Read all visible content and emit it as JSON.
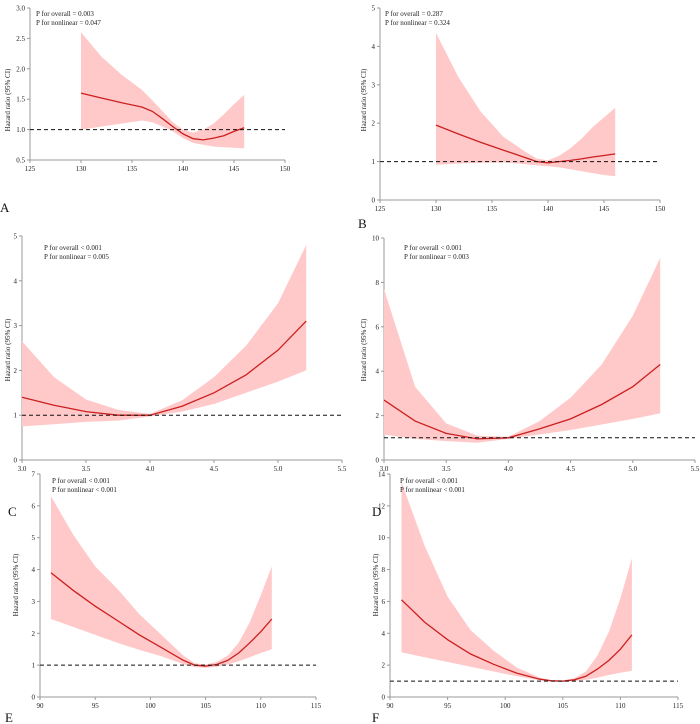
{
  "figure": {
    "description_free": true
  },
  "chart_data": [
    {
      "type": "line",
      "panel_letter": "A",
      "title": "",
      "xlabel": "",
      "ylabel": "Hazard ratio (95% CI)",
      "p_overall": "P for overall = 0.003",
      "p_nonlinear": "P for nonlinear = 0.047",
      "xlim": [
        125,
        150
      ],
      "ylim": [
        0.5,
        3.0
      ],
      "x_ticks": [
        125,
        130,
        135,
        140,
        145,
        150
      ],
      "y_ticks": [
        0.5,
        1.0,
        1.5,
        2.0,
        2.5,
        3.0
      ],
      "y_tick_labels": [
        "0.5",
        "1.0",
        "1.5",
        "2.0",
        "2.5",
        "3.0"
      ],
      "reference_line": 1,
      "series": [
        {
          "name": "Hazard ratio",
          "x": [
            130,
            132,
            134,
            136,
            137,
            138,
            139,
            140,
            141,
            142,
            143,
            144,
            145,
            146
          ],
          "values": [
            1.6,
            1.52,
            1.44,
            1.37,
            1.3,
            1.18,
            1.05,
            0.93,
            0.85,
            0.83,
            0.86,
            0.9,
            0.97,
            1.03
          ],
          "lower": [
            1.0,
            1.05,
            1.1,
            1.15,
            1.12,
            1.05,
            0.97,
            0.86,
            0.78,
            0.75,
            0.72,
            0.71,
            0.7,
            0.69
          ],
          "upper": [
            2.6,
            2.2,
            1.9,
            1.65,
            1.48,
            1.3,
            1.12,
            1.0,
            0.95,
            1.0,
            1.1,
            1.25,
            1.42,
            1.57
          ]
        }
      ]
    },
    {
      "type": "line",
      "panel_letter": "B",
      "title": "",
      "xlabel": "",
      "ylabel": "Hazard ratio (95% CI)",
      "p_overall": "P for overall = 0.287",
      "p_nonlinear": "P for nonlinear = 0.324",
      "xlim": [
        125,
        150
      ],
      "ylim": [
        0,
        5
      ],
      "x_ticks": [
        125,
        130,
        135,
        140,
        145,
        150
      ],
      "y_ticks": [
        0,
        1,
        2,
        3,
        4,
        5
      ],
      "y_tick_labels": [
        "0",
        "1",
        "2",
        "3",
        "4",
        "5"
      ],
      "reference_line": 1,
      "series": [
        {
          "name": "Hazard ratio",
          "x": [
            130,
            132,
            134,
            136,
            137,
            138,
            139,
            140,
            141,
            142,
            143,
            144,
            145,
            146
          ],
          "values": [
            1.95,
            1.72,
            1.5,
            1.3,
            1.2,
            1.1,
            1.0,
            0.97,
            1.0,
            1.03,
            1.07,
            1.12,
            1.16,
            1.2
          ],
          "lower": [
            0.92,
            0.95,
            0.97,
            0.98,
            0.96,
            0.93,
            0.9,
            0.88,
            0.85,
            0.8,
            0.75,
            0.7,
            0.65,
            0.62
          ],
          "upper": [
            4.35,
            3.2,
            2.3,
            1.65,
            1.45,
            1.25,
            1.08,
            1.03,
            1.15,
            1.35,
            1.6,
            1.9,
            2.15,
            2.4
          ]
        }
      ]
    },
    {
      "type": "line",
      "panel_letter": "C",
      "title": "",
      "xlabel": "",
      "ylabel": "Hazard ratio (95% CI)",
      "p_overall": "P for overall < 0.001",
      "p_nonlinear": "P for nonlinear = 0.005",
      "xlim": [
        3.0,
        5.5
      ],
      "ylim": [
        0,
        5
      ],
      "x_ticks": [
        3.0,
        3.5,
        4.0,
        4.5,
        5.0,
        5.5
      ],
      "y_ticks": [
        0,
        1,
        2,
        3,
        4,
        5
      ],
      "y_tick_labels": [
        "0",
        "1",
        "2",
        "3",
        "4",
        "5"
      ],
      "reference_line": 1,
      "series": [
        {
          "name": "Hazard ratio",
          "x": [
            3.0,
            3.25,
            3.5,
            3.75,
            4.0,
            4.25,
            4.5,
            4.75,
            5.0,
            5.22
          ],
          "values": [
            1.4,
            1.22,
            1.08,
            1.0,
            1.0,
            1.2,
            1.5,
            1.9,
            2.45,
            3.1
          ],
          "lower": [
            0.75,
            0.8,
            0.85,
            0.88,
            0.97,
            1.08,
            1.25,
            1.5,
            1.75,
            2.0
          ],
          "upper": [
            2.65,
            1.85,
            1.35,
            1.12,
            1.03,
            1.33,
            1.85,
            2.55,
            3.5,
            4.8
          ]
        }
      ]
    },
    {
      "type": "line",
      "panel_letter": "D",
      "title": "",
      "xlabel": "",
      "ylabel": "Hazard ratio (95% CI)",
      "p_overall": "P for overall < 0.001",
      "p_nonlinear": "P for nonlinear = 0.003",
      "xlim": [
        3.0,
        5.5
      ],
      "ylim": [
        0,
        10
      ],
      "x_ticks": [
        3.0,
        3.5,
        4.0,
        4.5,
        5.0,
        5.5
      ],
      "y_ticks": [
        0,
        2,
        4,
        6,
        8,
        10
      ],
      "y_tick_labels": [
        "0",
        "2",
        "4",
        "6",
        "8",
        "10"
      ],
      "reference_line": 1,
      "series": [
        {
          "name": "Hazard ratio",
          "x": [
            3.0,
            3.25,
            3.5,
            3.75,
            4.0,
            4.25,
            4.5,
            4.75,
            5.0,
            5.22
          ],
          "values": [
            2.7,
            1.75,
            1.2,
            0.95,
            1.0,
            1.4,
            1.85,
            2.5,
            3.3,
            4.3
          ],
          "lower": [
            1.15,
            0.95,
            0.85,
            0.78,
            0.95,
            1.15,
            1.35,
            1.6,
            1.85,
            2.1
          ],
          "upper": [
            7.7,
            3.3,
            1.65,
            1.1,
            1.05,
            1.75,
            2.8,
            4.3,
            6.5,
            9.1
          ]
        }
      ]
    },
    {
      "type": "line",
      "panel_letter": "E",
      "title": "",
      "xlabel": "",
      "ylabel": "Hazard ratio (95% CI)",
      "p_overall": "P for overall < 0.001",
      "p_nonlinear": "P for nonlinear < 0.001",
      "xlim": [
        90,
        115
      ],
      "ylim": [
        0,
        7
      ],
      "x_ticks": [
        90,
        95,
        100,
        105,
        110,
        115
      ],
      "y_ticks": [
        0,
        1,
        2,
        3,
        4,
        5,
        6,
        7
      ],
      "y_tick_labels": [
        "0",
        "1",
        "2",
        "3",
        "4",
        "5",
        "6",
        "7"
      ],
      "reference_line": 1,
      "series": [
        {
          "name": "Hazard ratio",
          "x": [
            91,
            93,
            95,
            97,
            99,
            101,
            103,
            104,
            105,
            106,
            107,
            108,
            109,
            110,
            111
          ],
          "values": [
            3.9,
            3.35,
            2.85,
            2.4,
            1.95,
            1.55,
            1.15,
            1.0,
            0.97,
            1.02,
            1.15,
            1.38,
            1.7,
            2.05,
            2.45
          ],
          "lower": [
            2.45,
            2.2,
            1.95,
            1.7,
            1.48,
            1.28,
            1.03,
            0.94,
            0.92,
            0.95,
            1.02,
            1.12,
            1.25,
            1.38,
            1.5
          ],
          "upper": [
            6.3,
            5.1,
            4.1,
            3.4,
            2.6,
            1.95,
            1.3,
            1.06,
            1.02,
            1.1,
            1.3,
            1.7,
            2.35,
            3.2,
            4.1
          ]
        }
      ]
    },
    {
      "type": "line",
      "panel_letter": "F",
      "title": "",
      "xlabel": "",
      "ylabel": "Hazard ratio (95% CI)",
      "p_overall": "P for overall < 0.001",
      "p_nonlinear": "P for nonlinear < 0.001",
      "xlim": [
        90,
        115
      ],
      "ylim": [
        0,
        14
      ],
      "x_ticks": [
        90,
        95,
        100,
        105,
        110,
        115
      ],
      "y_ticks": [
        0,
        2,
        4,
        6,
        8,
        10,
        12,
        14
      ],
      "y_tick_labels": [
        "0",
        "2",
        "4",
        "6",
        "8",
        "10",
        "12",
        "14"
      ],
      "reference_line": 1,
      "series": [
        {
          "name": "Hazard ratio",
          "x": [
            91,
            93,
            95,
            97,
            99,
            101,
            103,
            104,
            105,
            106,
            107,
            108,
            109,
            110,
            111
          ],
          "values": [
            6.1,
            4.7,
            3.6,
            2.7,
            2.05,
            1.5,
            1.12,
            1.02,
            1.0,
            1.08,
            1.3,
            1.75,
            2.3,
            3.0,
            3.9
          ],
          "lower": [
            2.8,
            2.5,
            2.2,
            1.9,
            1.6,
            1.3,
            1.05,
            0.97,
            0.95,
            1.0,
            1.08,
            1.22,
            1.38,
            1.52,
            1.65
          ],
          "upper": [
            13.5,
            9.5,
            6.3,
            4.2,
            2.9,
            1.85,
            1.22,
            1.06,
            1.04,
            1.18,
            1.6,
            2.6,
            4.1,
            6.2,
            8.7
          ]
        }
      ]
    }
  ]
}
